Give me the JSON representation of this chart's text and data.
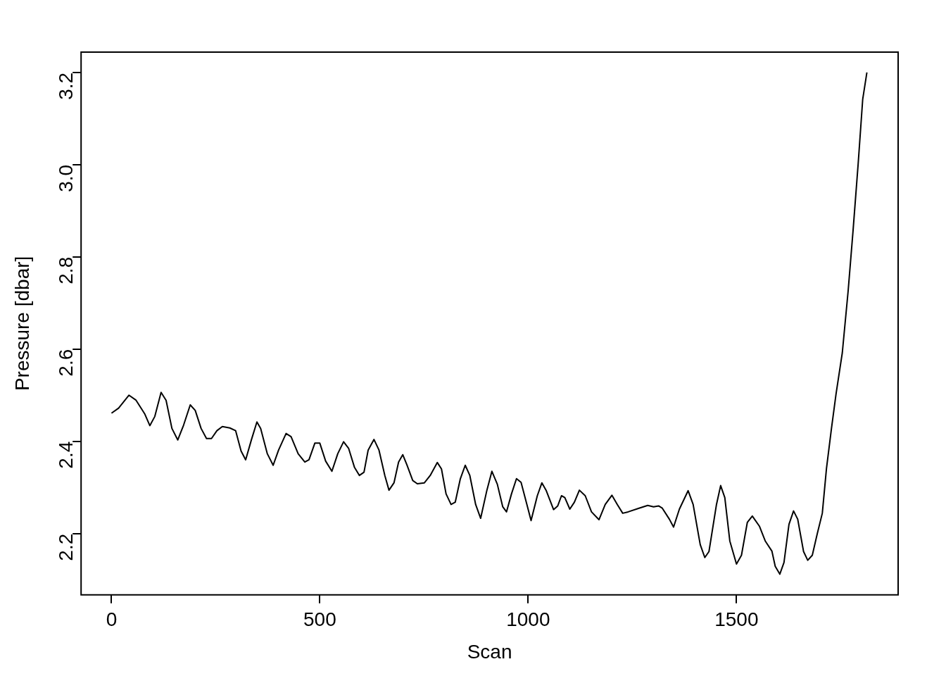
{
  "chart_data": {
    "type": "line",
    "xlabel": "Scan",
    "ylabel": "Pressure [dbar]",
    "xlim": [
      -73,
      1888
    ],
    "ylim": [
      2.067,
      3.244
    ],
    "xticks": [
      0,
      500,
      1000,
      1500
    ],
    "yticks": [
      2.2,
      2.4,
      2.6,
      2.8,
      {
        "value": 3,
        "label": "3.0"
      },
      3.2
    ],
    "legend": false,
    "marker": "none",
    "line_style": "solid",
    "series": [
      {
        "color": "#000000",
        "x": [
          0,
          17,
          42,
          59,
          80,
          92,
          104,
          119,
          131,
          145,
          159,
          173,
          189,
          201,
          215,
          228,
          240,
          253,
          266,
          284,
          298,
          311,
          322,
          336,
          349,
          358,
          374,
          388,
          401,
          419,
          431,
          448,
          464,
          474,
          488,
          500,
          514,
          529,
          543,
          557,
          569,
          583,
          595,
          606,
          616,
          630,
          642,
          656,
          666,
          678,
          689,
          699,
          709,
          723,
          734,
          751,
          765,
          782,
          792,
          803,
          815,
          825,
          837,
          849,
          860,
          874,
          886,
          901,
          913,
          926,
          939,
          948,
          960,
          972,
          983,
          997,
          1007,
          1022,
          1033,
          1043,
          1061,
          1071,
          1080,
          1088,
          1100,
          1111,
          1123,
          1137,
          1152,
          1170,
          1185,
          1201,
          1214,
          1227,
          1240,
          1266,
          1287,
          1301,
          1313,
          1322,
          1339,
          1349,
          1363,
          1384,
          1396,
          1413,
          1424,
          1434,
          1452,
          1462,
          1472,
          1484,
          1500,
          1512,
          1526,
          1538,
          1555,
          1569,
          1585,
          1593,
          1604,
          1614,
          1626,
          1637,
          1647,
          1661,
          1671,
          1682,
          1694,
          1706,
          1716,
          1728,
          1739,
          1754,
          1768,
          1780,
          1792,
          1803,
          1813
        ],
        "values": [
          2.461,
          2.472,
          2.5,
          2.489,
          2.459,
          2.434,
          2.454,
          2.506,
          2.489,
          2.428,
          2.403,
          2.435,
          2.479,
          2.467,
          2.428,
          2.406,
          2.406,
          2.423,
          2.432,
          2.429,
          2.423,
          2.379,
          2.36,
          2.404,
          2.442,
          2.428,
          2.373,
          2.348,
          2.381,
          2.417,
          2.41,
          2.373,
          2.355,
          2.36,
          2.396,
          2.396,
          2.357,
          2.335,
          2.373,
          2.399,
          2.385,
          2.344,
          2.326,
          2.333,
          2.381,
          2.404,
          2.381,
          2.326,
          2.294,
          2.31,
          2.355,
          2.371,
          2.349,
          2.315,
          2.308,
          2.31,
          2.326,
          2.354,
          2.34,
          2.286,
          2.263,
          2.268,
          2.318,
          2.348,
          2.326,
          2.263,
          2.233,
          2.294,
          2.335,
          2.307,
          2.258,
          2.247,
          2.286,
          2.319,
          2.311,
          2.263,
          2.228,
          2.282,
          2.31,
          2.294,
          2.252,
          2.26,
          2.282,
          2.278,
          2.253,
          2.268,
          2.294,
          2.282,
          2.247,
          2.23,
          2.263,
          2.283,
          2.263,
          2.244,
          2.247,
          2.255,
          2.261,
          2.258,
          2.26,
          2.255,
          2.231,
          2.214,
          2.253,
          2.293,
          2.263,
          2.176,
          2.148,
          2.161,
          2.263,
          2.304,
          2.278,
          2.184,
          2.134,
          2.153,
          2.224,
          2.238,
          2.216,
          2.184,
          2.162,
          2.129,
          2.112,
          2.137,
          2.22,
          2.249,
          2.231,
          2.161,
          2.142,
          2.153,
          2.2,
          2.244,
          2.341,
          2.428,
          2.503,
          2.592,
          2.726,
          2.859,
          3.001,
          3.142,
          3.2
        ]
      }
    ]
  }
}
